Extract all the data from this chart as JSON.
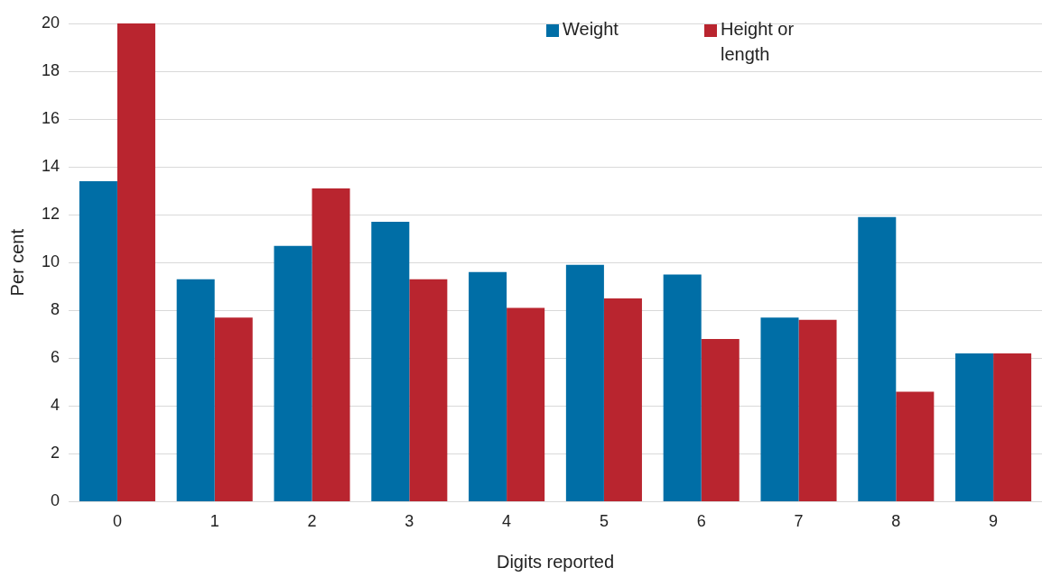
{
  "chart_data": {
    "type": "bar",
    "xlabel": "Digits reported",
    "ylabel": "Per cent",
    "categories": [
      "0",
      "1",
      "2",
      "3",
      "4",
      "5",
      "6",
      "7",
      "8",
      "9"
    ],
    "series": [
      {
        "name": "Weight",
        "color": "#006ea6",
        "values": [
          13.4,
          9.3,
          10.7,
          11.7,
          9.6,
          9.9,
          9.5,
          7.7,
          11.9,
          6.2
        ]
      },
      {
        "name": "Height or length",
        "color": "#b9252f",
        "values": [
          20,
          7.7,
          13.1,
          9.3,
          8.1,
          8.5,
          6.8,
          7.6,
          4.6,
          6.2
        ]
      }
    ],
    "ylim": [
      0,
      20
    ],
    "yticks": [
      0,
      2,
      4,
      6,
      8,
      10,
      12,
      14,
      16,
      18,
      20
    ],
    "grid": "y",
    "legend": "top"
  }
}
